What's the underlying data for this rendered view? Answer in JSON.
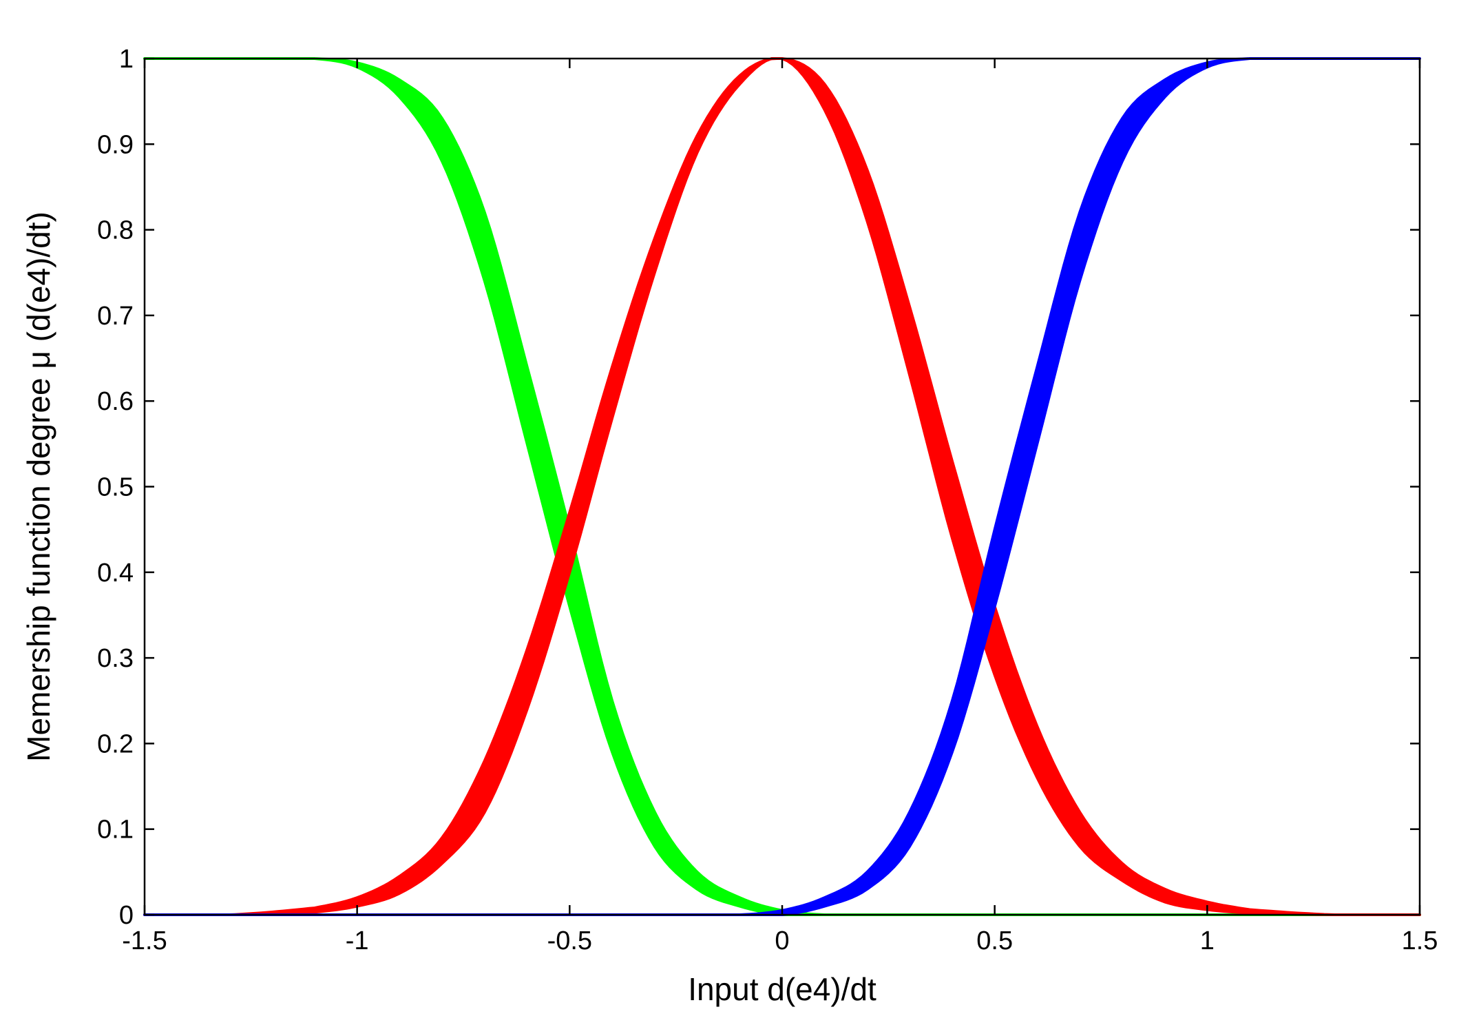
{
  "chart_data": {
    "type": "area",
    "title": "",
    "xlabel": "Input d(e4)/dt",
    "ylabel": "Memership function degree μ (d(e4)/dt)",
    "xlim": [
      -1.5,
      1.5
    ],
    "ylim": [
      0,
      1
    ],
    "grid": false,
    "legend": "none",
    "xticks": [
      -1.5,
      -1,
      -0.5,
      0,
      0.5,
      1,
      1.5
    ],
    "xtick_labels": [
      "-1.5",
      "-1",
      "-0.5",
      "0",
      "0.5",
      "1",
      "1.5"
    ],
    "yticks": [
      0,
      0.1,
      0.2,
      0.3,
      0.4,
      0.5,
      0.6,
      0.7,
      0.8,
      0.9,
      1
    ],
    "ytick_labels": [
      "0",
      "0.1",
      "0.2",
      "0.3",
      "0.4",
      "0.5",
      "0.6",
      "0.7",
      "0.8",
      "0.9",
      "1"
    ],
    "x": [
      -1.5,
      -1.3,
      -1.1,
      -1.0,
      -0.9,
      -0.8,
      -0.7,
      -0.6,
      -0.5,
      -0.4,
      -0.3,
      -0.2,
      -0.1,
      0,
      0.1,
      0.2,
      0.3,
      0.4,
      0.5,
      0.6,
      0.7,
      0.8,
      0.9,
      1.0,
      1.1,
      1.3,
      1.5
    ],
    "series": [
      {
        "color": "#00ff00",
        "upper": [
          1.0,
          1.0,
          1.0,
          0.995,
          0.975,
          0.93,
          0.82,
          0.64,
          0.45,
          0.25,
          0.12,
          0.05,
          0.02,
          0.005,
          0.0,
          0.0,
          0.0,
          0.0,
          0.0,
          0.0,
          0.0,
          0.0,
          0.0,
          0.0,
          0.0,
          0.0,
          0.0
        ],
        "lower": [
          1.0,
          1.0,
          1.0,
          0.99,
          0.955,
          0.88,
          0.74,
          0.55,
          0.36,
          0.19,
          0.08,
          0.03,
          0.01,
          0.0,
          0.0,
          0.0,
          0.0,
          0.0,
          0.0,
          0.0,
          0.0,
          0.0,
          0.0,
          0.0,
          0.0,
          0.0,
          0.0
        ]
      },
      {
        "color": "#ff0000",
        "upper": [
          0.0,
          0.0,
          0.008,
          0.02,
          0.045,
          0.09,
          0.18,
          0.31,
          0.47,
          0.64,
          0.79,
          0.91,
          0.98,
          1.0,
          0.97,
          0.87,
          0.71,
          0.53,
          0.36,
          0.22,
          0.12,
          0.06,
          0.03,
          0.015,
          0.006,
          0.0,
          0.0
        ],
        "lower": [
          0.0,
          0.0,
          0.003,
          0.01,
          0.025,
          0.06,
          0.12,
          0.24,
          0.4,
          0.58,
          0.75,
          0.89,
          0.97,
          1.0,
          0.94,
          0.81,
          0.63,
          0.44,
          0.28,
          0.16,
          0.08,
          0.04,
          0.015,
          0.006,
          0.002,
          0.0,
          0.0
        ]
      },
      {
        "color": "#0000ff",
        "upper": [
          0.0,
          0.0,
          0.0,
          0.0,
          0.0,
          0.0,
          0.0,
          0.0,
          0.0,
          0.0,
          0.0,
          0.0,
          0.0,
          0.005,
          0.02,
          0.05,
          0.12,
          0.25,
          0.45,
          0.64,
          0.82,
          0.93,
          0.975,
          0.995,
          1.0,
          1.0,
          1.0
        ],
        "lower": [
          0.0,
          0.0,
          0.0,
          0.0,
          0.0,
          0.0,
          0.0,
          0.0,
          0.0,
          0.0,
          0.0,
          0.0,
          0.0,
          0.0,
          0.01,
          0.03,
          0.08,
          0.19,
          0.36,
          0.55,
          0.74,
          0.88,
          0.955,
          0.99,
          1.0,
          1.0,
          1.0
        ]
      }
    ]
  }
}
